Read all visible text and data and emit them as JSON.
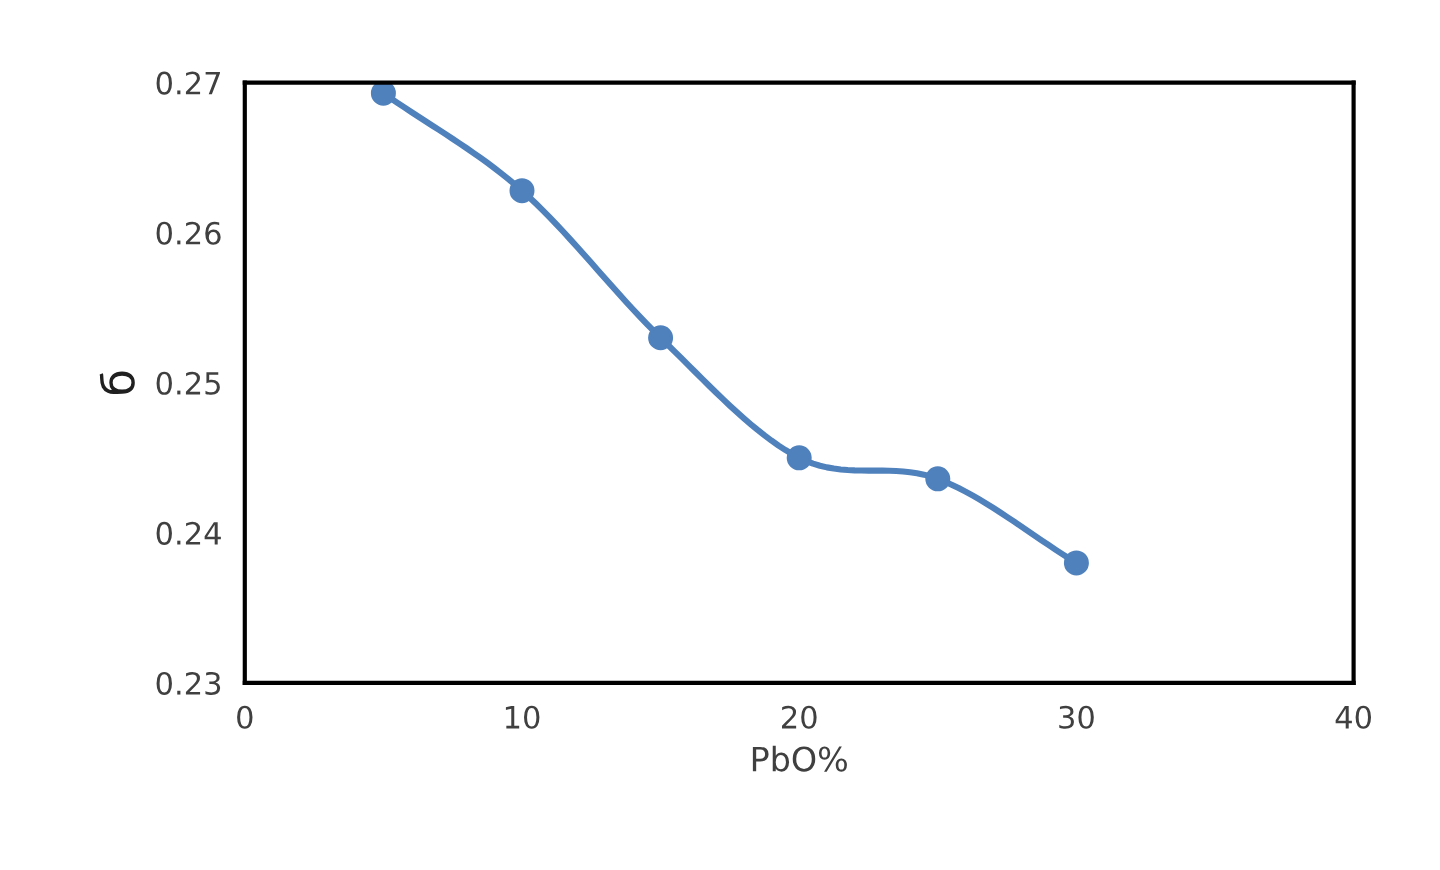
{
  "chart_data": {
    "type": "line",
    "xlabel": "PbO%",
    "ylabel": "б",
    "x": [
      5,
      10,
      15,
      20,
      25,
      30
    ],
    "series": [
      {
        "color": "#4f81bd",
        "values": [
          0.2693,
          0.2628,
          0.253,
          0.245,
          0.2436,
          0.238
        ]
      }
    ],
    "xlim": [
      0,
      40
    ],
    "xticks": [
      0,
      10,
      20,
      30,
      40
    ],
    "ylim": [
      0.23,
      0.27
    ],
    "yticks": [
      {
        "value": 0.23,
        "label": "0.23"
      },
      {
        "value": 0.24,
        "label": "0.24"
      },
      {
        "value": 0.25,
        "label": "0.25"
      },
      {
        "value": 0.26,
        "label": "0.26"
      },
      {
        "value": 0.27,
        "label": "0.27"
      }
    ],
    "marker": "circle",
    "line_style": "solid",
    "grid": false,
    "legend": false
  }
}
